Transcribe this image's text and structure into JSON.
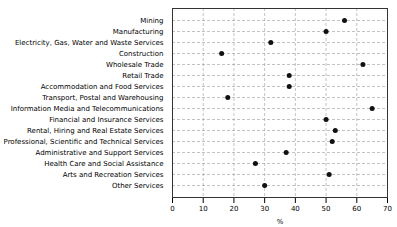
{
  "chart_data": {
    "type": "dot",
    "categories": [
      "Other Services",
      "Arts and Recreation Services",
      "Health Care and Social Assistance",
      "Administrative and Support Services",
      "Professional, Scientific and Technical Services",
      "Rental, Hiring and Real Estate Services",
      "Financial and Insurance Services",
      "Information Media and Telecommunications",
      "Transport, Postal and Warehousing",
      "Accommodation and Food Services",
      "Retail Trade",
      "Wholesale Trade",
      "Construction",
      "Electricity, Gas, Water and Waste Services",
      "Manufacturing",
      "Mining"
    ],
    "values": [
      30,
      51,
      27,
      37,
      52,
      53,
      50,
      65,
      18,
      38,
      38,
      62,
      16,
      32,
      50,
      56
    ],
    "color": "#111111",
    "xlabel": "%",
    "xlim": [
      0,
      70
    ],
    "xticks": [
      0,
      10,
      20,
      30,
      40,
      50,
      60,
      70
    ],
    "grid": true,
    "line_style": "dashed"
  }
}
